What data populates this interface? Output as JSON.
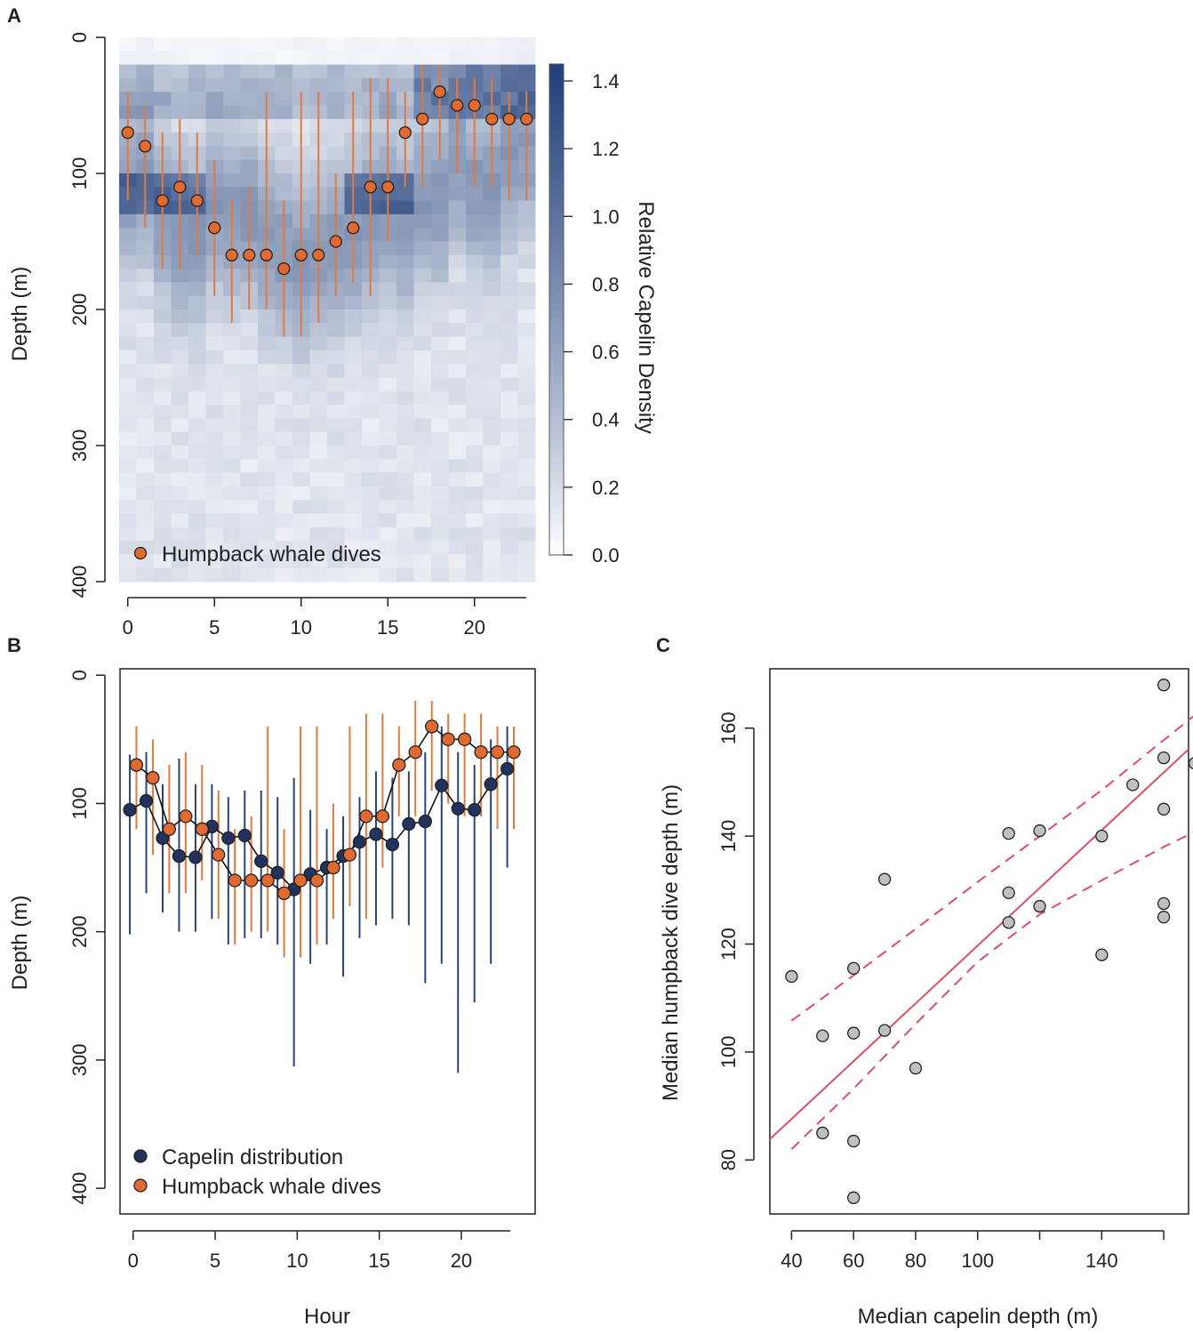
{
  "panel_labels": {
    "a": "A",
    "b": "B",
    "c": "C"
  },
  "colors": {
    "capelin": "#22325e",
    "whale": "#e06a30",
    "whale_bar": "#e07a40",
    "capelin_bar": "#2c4277",
    "regression": "#de4e62",
    "point_fill": "#c0c0c0",
    "cmap_low": "#ffffff",
    "cmap_high": "#1f3d78"
  },
  "chart_data": [
    {
      "id": "A",
      "type": "heatmap",
      "ylabel": "Depth (m)",
      "xlabel": "",
      "xlim": [
        -0.5,
        23.5
      ],
      "ylim": [
        400,
        0
      ],
      "x_ticks": [
        "0",
        "5",
        "10",
        "15",
        "20"
      ],
      "y_ticks": [
        "0",
        "100",
        "200",
        "300",
        "400"
      ],
      "colorbar": {
        "label": "Relative Capelin Density",
        "range": [
          0,
          1.45
        ],
        "ticks": [
          "0.0",
          "0.2",
          "0.4",
          "0.6",
          "0.8",
          "1.0",
          "1.2",
          "1.4"
        ]
      },
      "depth_bin": 10,
      "density_profiles_note": "per-hour density values by 10 m depth bin (0-400 m)",
      "whale_dives": {
        "hours": [
          0,
          1,
          2,
          3,
          4,
          5,
          6,
          7,
          8,
          9,
          10,
          11,
          12,
          13,
          14,
          15,
          16,
          17,
          18,
          19,
          20,
          21,
          22,
          23
        ],
        "median": [
          70,
          80,
          120,
          110,
          120,
          140,
          160,
          160,
          160,
          170,
          160,
          160,
          150,
          140,
          110,
          110,
          70,
          60,
          40,
          50,
          50,
          60,
          60,
          60
        ],
        "low": [
          40,
          50,
          70,
          60,
          70,
          90,
          120,
          110,
          40,
          120,
          40,
          40,
          100,
          40,
          30,
          30,
          40,
          20,
          20,
          30,
          30,
          30,
          40,
          40
        ],
        "high": [
          120,
          140,
          170,
          170,
          160,
          190,
          210,
          200,
          200,
          220,
          220,
          210,
          190,
          180,
          190,
          150,
          110,
          110,
          90,
          100,
          110,
          110,
          120,
          120
        ]
      },
      "legend": [
        "Humpback whale dives"
      ]
    },
    {
      "id": "B",
      "type": "line",
      "xlabel": "Hour",
      "ylabel": "Depth (m)",
      "xlim": [
        -0.8,
        24.5
      ],
      "ylim": [
        420,
        -5
      ],
      "x_ticks": [
        "0",
        "5",
        "10",
        "15",
        "20"
      ],
      "y_ticks": [
        "0",
        "100",
        "200",
        "300",
        "400"
      ],
      "series": [
        {
          "name": "Capelin distribution",
          "x": [
            -0.2,
            0.8,
            1.8,
            2.8,
            3.8,
            4.8,
            5.8,
            6.8,
            7.8,
            8.8,
            9.8,
            10.8,
            11.8,
            12.8,
            13.8,
            14.8,
            15.8,
            16.8,
            17.8,
            18.8,
            19.8,
            20.8,
            21.8,
            22.8
          ],
          "y": [
            105,
            98,
            127,
            141,
            142,
            118,
            127,
            125,
            145,
            154,
            167,
            155,
            150,
            141,
            130,
            124,
            132,
            116,
            114,
            86,
            104,
            105,
            85,
            73
          ],
          "low": [
            62,
            60,
            85,
            65,
            85,
            85,
            95,
            90,
            90,
            95,
            80,
            105,
            120,
            110,
            95,
            75,
            80,
            75,
            60,
            40,
            60,
            70,
            50,
            40
          ],
          "high": [
            202,
            170,
            185,
            200,
            200,
            190,
            210,
            205,
            205,
            210,
            305,
            225,
            210,
            235,
            205,
            195,
            190,
            195,
            240,
            225,
            310,
            255,
            225,
            150
          ]
        },
        {
          "name": "Humpback whale dives",
          "x": [
            0.2,
            1.2,
            2.2,
            3.2,
            4.2,
            5.2,
            6.2,
            7.2,
            8.2,
            9.2,
            10.2,
            11.2,
            12.2,
            13.2,
            14.2,
            15.2,
            16.2,
            17.2,
            18.2,
            19.2,
            20.2,
            21.2,
            22.2,
            23.2
          ],
          "y": [
            70,
            80,
            120,
            110,
            120,
            140,
            160,
            160,
            160,
            170,
            160,
            160,
            150,
            140,
            110,
            110,
            70,
            60,
            40,
            50,
            50,
            60,
            60,
            60
          ],
          "low": [
            40,
            50,
            70,
            60,
            70,
            90,
            120,
            110,
            40,
            120,
            40,
            40,
            100,
            40,
            30,
            30,
            40,
            20,
            20,
            30,
            30,
            30,
            40,
            40
          ],
          "high": [
            120,
            140,
            170,
            170,
            160,
            190,
            210,
            200,
            200,
            220,
            220,
            210,
            190,
            180,
            190,
            150,
            110,
            110,
            90,
            100,
            110,
            110,
            120,
            120
          ]
        }
      ],
      "legend": [
        "Capelin distribution",
        "Humpback whale dives"
      ]
    },
    {
      "id": "C",
      "type": "scatter",
      "xlabel": "Median capelin depth (m)",
      "ylabel": "Median humpback dive depth (m)",
      "xlim": [
        33,
        168
      ],
      "ylim": [
        70,
        171
      ],
      "x_ticks": [
        "40",
        "60",
        "80",
        "100",
        "140"
      ],
      "x_tick_values": [
        40,
        60,
        80,
        100,
        140
      ],
      "y_ticks": [
        "80",
        "100",
        "120",
        "140",
        "160"
      ],
      "y_tick_values": [
        80,
        100,
        120,
        140,
        160
      ],
      "x": [
        40,
        50,
        50,
        60,
        60,
        60,
        60,
        70,
        70,
        80,
        110,
        110,
        110,
        120,
        120,
        140,
        140,
        150,
        160,
        160,
        160,
        160,
        160,
        170
      ],
      "y": [
        114,
        103,
        85,
        115.5,
        103.5,
        83.5,
        73,
        132,
        104,
        97,
        140.5,
        129.5,
        124,
        141,
        127,
        140,
        118,
        149.5,
        168,
        154.5,
        145,
        127.5,
        125,
        153.5
      ],
      "fit": {
        "intercept": 66.2,
        "slope": 0.535
      },
      "ci_upper": [
        [
          40,
          105.8
        ],
        [
          60,
          114.2
        ],
        [
          80,
          122.8
        ],
        [
          100,
          131.5
        ],
        [
          120,
          140.0
        ],
        [
          140,
          148.5
        ],
        [
          160,
          157.8
        ],
        [
          170,
          162.4
        ]
      ],
      "ci_lower": [
        [
          40,
          82.0
        ],
        [
          60,
          93.2
        ],
        [
          80,
          105.2
        ],
        [
          100,
          116.7
        ],
        [
          120,
          125.5
        ],
        [
          140,
          131.8
        ],
        [
          160,
          138.0
        ],
        [
          170,
          140.8
        ]
      ]
    }
  ]
}
